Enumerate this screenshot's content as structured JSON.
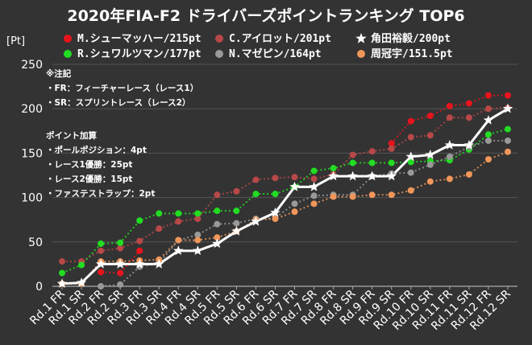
{
  "chart_data": {
    "type": "line",
    "title": "2020年FIA-F2 ドライバーズポイントランキング TOP6",
    "ylabel": "[Pt]",
    "ylim": [
      0,
      250
    ],
    "yticks": [
      0,
      50,
      100,
      150,
      200,
      250
    ],
    "grid": true,
    "legend_position": "top-right",
    "categories": [
      "Rd.1 FR",
      "Rd.1 SR",
      "Rd.2 FR",
      "Rd.2 SR",
      "Rd.3 FR",
      "Rd.3 SR",
      "Rd.4 FR",
      "Rd.4 SR",
      "Rd.5 FR",
      "Rd.5 SR",
      "Rd.6 FR",
      "Rd.6 SR",
      "Rd.7 FR",
      "Rd.7 SR",
      "Rd.8 FR",
      "Rd.8 SR",
      "Rd.9 FR",
      "Rd.9 SR",
      "Rd.10 FR",
      "Rd.10 SR",
      "Rd.11 FR",
      "Rd.11 SR",
      "Rd.12 FR",
      "Rd.12 SR"
    ],
    "series": [
      {
        "name": "M.シューマッハー/215pt",
        "color": "#e8141c",
        "marker": "circle",
        "values": [
          null,
          null,
          16,
          15,
          40,
          null,
          null,
          null,
          null,
          null,
          null,
          null,
          null,
          null,
          null,
          null,
          null,
          161,
          186,
          192,
          203,
          206,
          215,
          215
        ]
      },
      {
        "name": "C.アイロット/201pt",
        "color": "#b84848",
        "marker": "circle",
        "values": [
          28,
          28,
          40,
          43,
          51,
          65,
          73,
          76,
          103,
          107,
          120,
          122,
          123,
          121,
          126,
          148,
          152,
          155,
          168,
          170,
          190,
          190,
          200,
          201
        ]
      },
      {
        "name": "角田裕毅/200pt",
        "color": "#ffffff",
        "marker": "star",
        "values": [
          3,
          4,
          25,
          25,
          25,
          25,
          40,
          40,
          48,
          62,
          73,
          83,
          112,
          112,
          124,
          124,
          124,
          124,
          146,
          148,
          159,
          159,
          187,
          200
        ]
      },
      {
        "name": "R.シュワルツマン/177pt",
        "color": "#22dd22",
        "marker": "circle",
        "values": [
          15,
          24,
          48,
          49,
          74,
          82,
          82,
          82,
          85,
          85,
          104,
          104,
          112,
          130,
          133,
          139,
          139,
          139,
          140,
          141,
          142,
          154,
          171,
          177
        ]
      },
      {
        "name": "N.マゼピン/164pt",
        "color": "#999999",
        "marker": "circle",
        "values": [
          null,
          null,
          0,
          2,
          22,
          26,
          52,
          58,
          70,
          71,
          76,
          77,
          93,
          102,
          103,
          103,
          124,
          127,
          128,
          137,
          146,
          157,
          164,
          164
        ]
      },
      {
        "name": "周冠宇/151.5pt",
        "color": "#f0965a",
        "marker": "circle",
        "values": [
          3,
          3,
          28,
          28,
          29,
          30,
          52,
          52,
          55,
          62,
          75,
          76,
          84,
          93,
          101,
          101,
          103,
          103,
          108,
          118,
          121,
          126,
          143,
          151.5
        ]
      }
    ]
  },
  "notes": {
    "title": "※注記",
    "items": [
      "・FR：フィーチャーレース（レース1）",
      "・SR：スプリントレース（レース2）"
    ]
  },
  "points": {
    "title": "ポイント加算",
    "items": [
      "・ポールポジション：4pt",
      "・レース1優勝：25pt",
      "・レース2優勝：15pt",
      "・ファステストラップ：2pt"
    ]
  }
}
